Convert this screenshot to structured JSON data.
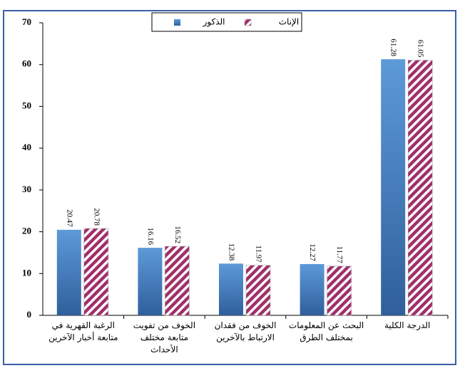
{
  "chart_data": {
    "type": "bar",
    "categories": [
      "الرغبة القهرية في متابعة أخبار الآخرين",
      "الخوف من تفويت متابعة مختلف الأحداث",
      "الخوف من فقدان الارتباط بالآخرين",
      "البحث عن المعلومات بمختلف الطرق",
      "الدرجة الكلية"
    ],
    "series": [
      {
        "name": "الذكور",
        "color": "#4a7fc1",
        "values": [
          20.47,
          16.16,
          12.38,
          12.27,
          61.28
        ]
      },
      {
        "name": "الإناث",
        "color": "#a0306a",
        "values": [
          20.78,
          16.52,
          11.97,
          11.77,
          61.05
        ]
      }
    ],
    "ylim": [
      0,
      70
    ],
    "yticks": [
      0,
      10,
      20,
      30,
      40,
      50,
      60,
      70
    ],
    "data_labels": true
  }
}
